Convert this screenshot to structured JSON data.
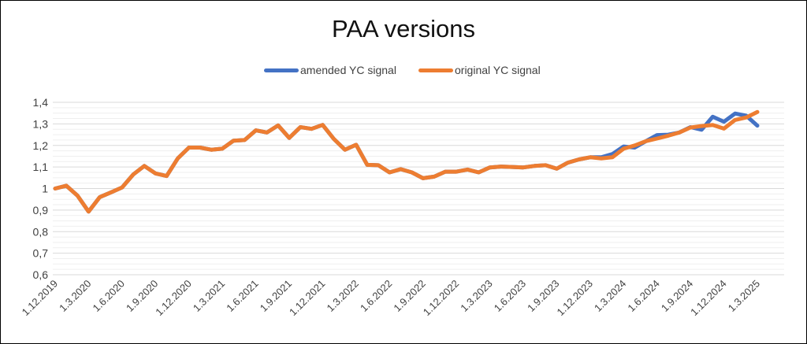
{
  "chart_data": {
    "type": "line",
    "title": "PAA versions",
    "xlabel": "",
    "ylabel": "",
    "legend_position": "top",
    "grid": true,
    "ylim": [
      0.6,
      1.4
    ],
    "yticks": [
      "0,6",
      "0,7",
      "0,8",
      "0,9",
      "1",
      "1,1",
      "1,2",
      "1,3",
      "1,4"
    ],
    "x": [
      "1.12.2019",
      "1.1.2020",
      "1.2.2020",
      "1.3.2020",
      "1.4.2020",
      "1.5.2020",
      "1.6.2020",
      "1.7.2020",
      "1.8.2020",
      "1.9.2020",
      "1.10.2020",
      "1.11.2020",
      "1.12.2020",
      "1.1.2021",
      "1.2.2021",
      "1.3.2021",
      "1.4.2021",
      "1.5.2021",
      "1.6.2021",
      "1.7.2021",
      "1.8.2021",
      "1.9.2021",
      "1.10.2021",
      "1.11.2021",
      "1.12.2021",
      "1.1.2022",
      "1.2.2022",
      "1.3.2022",
      "1.4.2022",
      "1.5.2022",
      "1.6.2022",
      "1.7.2022",
      "1.8.2022",
      "1.9.2022",
      "1.10.2022",
      "1.11.2022",
      "1.12.2022",
      "1.1.2023",
      "1.2.2023",
      "1.3.2023",
      "1.4.2023",
      "1.5.2023",
      "1.6.2023",
      "1.7.2023",
      "1.8.2023",
      "1.9.2023",
      "1.10.2023",
      "1.11.2023",
      "1.12.2023",
      "1.1.2024",
      "1.2.2024",
      "1.3.2024",
      "1.4.2024",
      "1.5.2024",
      "1.6.2024",
      "1.7.2024",
      "1.8.2024",
      "1.9.2024",
      "1.10.2024",
      "1.11.2024",
      "1.12.2024",
      "1.1.2025",
      "1.2.2025",
      "1.3.2025"
    ],
    "xtick_labels": [
      "1.12.2019",
      "1.3.2020",
      "1.6.2020",
      "1.9.2020",
      "1.12.2020",
      "1.3.2021",
      "1.6.2021",
      "1.9.2021",
      "1.12.2021",
      "1.3.2022",
      "1.6.2022",
      "1.9.2022",
      "1.12.2022",
      "1.3.2023",
      "1.6.2023",
      "1.9.2023",
      "1.12.2023",
      "1.3.2024",
      "1.6.2024",
      "1.9.2024",
      "1.12.2024",
      "1.3.2025"
    ],
    "series": [
      {
        "name": "amended YC signal",
        "color": "#4472c4",
        "values": [
          1.0,
          1.013,
          0.967,
          0.893,
          0.96,
          0.982,
          1.005,
          1.065,
          1.105,
          1.07,
          1.058,
          1.14,
          1.19,
          1.19,
          1.18,
          1.185,
          1.222,
          1.225,
          1.27,
          1.26,
          1.293,
          1.235,
          1.285,
          1.277,
          1.295,
          1.23,
          1.18,
          1.203,
          1.11,
          1.108,
          1.075,
          1.09,
          1.075,
          1.048,
          1.055,
          1.078,
          1.078,
          1.088,
          1.075,
          1.098,
          1.102,
          1.1,
          1.098,
          1.105,
          1.108,
          1.092,
          1.12,
          1.135,
          1.145,
          1.145,
          1.16,
          1.195,
          1.19,
          1.22,
          1.248,
          1.25,
          1.26,
          1.285,
          1.273,
          1.333,
          1.31,
          1.348,
          1.338,
          1.292
        ]
      },
      {
        "name": "original YC signal",
        "color": "#ed7d31",
        "values": [
          1.0,
          1.013,
          0.967,
          0.893,
          0.96,
          0.982,
          1.005,
          1.065,
          1.105,
          1.07,
          1.058,
          1.14,
          1.19,
          1.19,
          1.18,
          1.185,
          1.222,
          1.225,
          1.27,
          1.26,
          1.293,
          1.235,
          1.285,
          1.277,
          1.295,
          1.23,
          1.18,
          1.203,
          1.11,
          1.108,
          1.075,
          1.09,
          1.075,
          1.048,
          1.055,
          1.078,
          1.078,
          1.088,
          1.075,
          1.098,
          1.102,
          1.1,
          1.098,
          1.105,
          1.108,
          1.092,
          1.12,
          1.135,
          1.145,
          1.14,
          1.145,
          1.185,
          1.2,
          1.22,
          1.232,
          1.245,
          1.26,
          1.283,
          1.29,
          1.295,
          1.278,
          1.318,
          1.33,
          1.355
        ]
      }
    ]
  }
}
